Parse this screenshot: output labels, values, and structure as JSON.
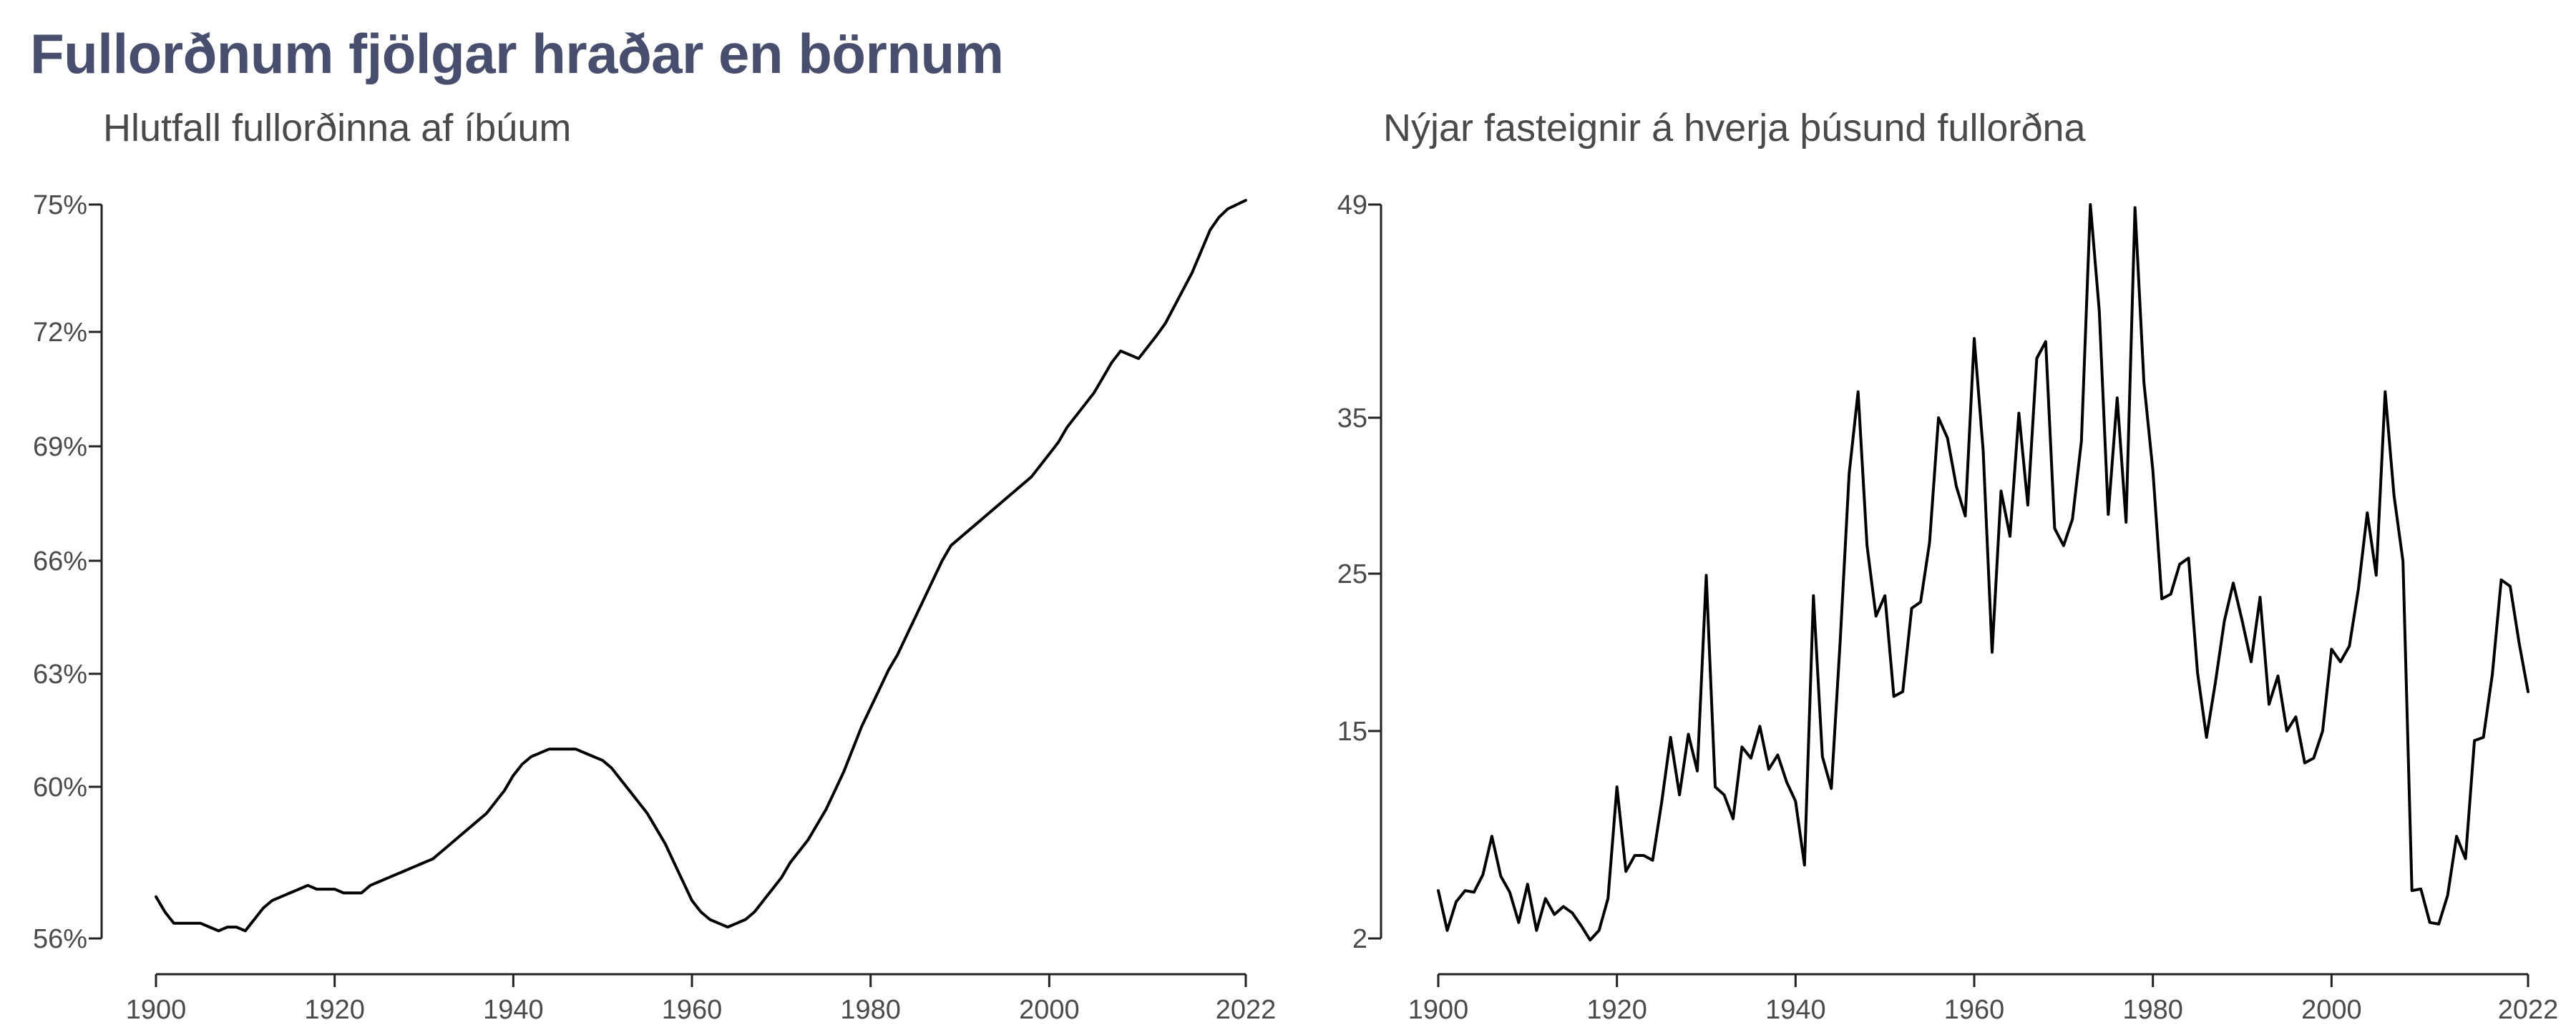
{
  "title": "Fullorðnum fjölgar hraðar en börnum",
  "chart_data": [
    {
      "type": "line",
      "title": "Hlutfall fullorðinna af íbúum",
      "xlabel": "",
      "ylabel": "",
      "xlim": [
        1900,
        2022
      ],
      "ylim": [
        56,
        75
      ],
      "x_ticks": [
        "1900",
        "1920",
        "1940",
        "1960",
        "1980",
        "2000",
        "2022"
      ],
      "y_ticks": [
        "56%",
        "60%",
        "63%",
        "66%",
        "69%",
        "72%",
        "75%"
      ],
      "y_tick_values": [
        56,
        60,
        63,
        66,
        69,
        72,
        75
      ],
      "grid": false,
      "color": "#000000",
      "series": [
        {
          "x": [
            1900,
            1901,
            1902,
            1903,
            1904,
            1905,
            1906,
            1907,
            1908,
            1909,
            1910,
            1911,
            1912,
            1913,
            1914,
            1915,
            1916,
            1917,
            1918,
            1919,
            1920,
            1921,
            1922,
            1923,
            1924,
            1925,
            1926,
            1927,
            1928,
            1929,
            1930,
            1931,
            1932,
            1933,
            1934,
            1935,
            1936,
            1937,
            1938,
            1939,
            1940,
            1941,
            1942,
            1943,
            1944,
            1945,
            1946,
            1947,
            1948,
            1949,
            1950,
            1951,
            1952,
            1953,
            1954,
            1955,
            1956,
            1957,
            1958,
            1959,
            1960,
            1961,
            1962,
            1963,
            1964,
            1965,
            1966,
            1967,
            1968,
            1969,
            1970,
            1971,
            1972,
            1973,
            1974,
            1975,
            1976,
            1977,
            1978,
            1979,
            1980,
            1981,
            1982,
            1983,
            1984,
            1985,
            1986,
            1987,
            1988,
            1989,
            1990,
            1991,
            1992,
            1993,
            1994,
            1995,
            1996,
            1997,
            1998,
            1999,
            2000,
            2001,
            2002,
            2003,
            2004,
            2005,
            2006,
            2007,
            2008,
            2009,
            2010,
            2011,
            2012,
            2013,
            2014,
            2015,
            2016,
            2017,
            2018,
            2019,
            2020,
            2021,
            2022
          ],
          "y": [
            57.1,
            56.7,
            56.4,
            56.4,
            56.4,
            56.4,
            56.3,
            56.2,
            56.3,
            56.3,
            56.2,
            56.5,
            56.8,
            57.0,
            57.1,
            57.2,
            57.3,
            57.4,
            57.3,
            57.3,
            57.3,
            57.2,
            57.2,
            57.2,
            57.4,
            57.5,
            57.6,
            57.7,
            57.8,
            57.9,
            58.0,
            58.1,
            58.3,
            58.5,
            58.7,
            58.9,
            59.1,
            59.3,
            59.6,
            59.9,
            60.3,
            60.6,
            60.8,
            60.9,
            61.0,
            61.0,
            61.0,
            61.0,
            60.9,
            60.8,
            60.7,
            60.5,
            60.2,
            59.9,
            59.6,
            59.3,
            58.9,
            58.5,
            58.0,
            57.5,
            57.0,
            56.7,
            56.5,
            56.4,
            56.3,
            56.4,
            56.5,
            56.7,
            57.0,
            57.3,
            57.6,
            58.0,
            58.3,
            58.6,
            59.0,
            59.4,
            59.9,
            60.4,
            61.0,
            61.6,
            62.1,
            62.6,
            63.1,
            63.5,
            64.0,
            64.5,
            65.0,
            65.5,
            66.0,
            66.4,
            66.6,
            66.8,
            67.0,
            67.2,
            67.4,
            67.6,
            67.8,
            68.0,
            68.2,
            68.5,
            68.8,
            69.1,
            69.5,
            69.8,
            70.1,
            70.4,
            70.8,
            71.2,
            71.5,
            71.4,
            71.3,
            71.6,
            71.9,
            72.2,
            72.6,
            73.0,
            73.4,
            73.9,
            74.4,
            74.7,
            74.9,
            75.0,
            75.1
          ]
        }
      ]
    },
    {
      "type": "line",
      "title": "Nýjar fasteignir á hverja þúsund fullorðna",
      "xlabel": "",
      "ylabel": "",
      "xlim": [
        1900,
        2022
      ],
      "ylim": [
        2,
        49
      ],
      "x_ticks": [
        "1900",
        "1920",
        "1940",
        "1960",
        "1980",
        "2000",
        "2022"
      ],
      "y_ticks": [
        "2",
        "15",
        "25",
        "35",
        "49"
      ],
      "y_tick_values": [
        2,
        15,
        25,
        35,
        49
      ],
      "y_scale": "nonlinear (ticks at 2, 15, 25, 35, 49)",
      "grid": false,
      "color": "#000000",
      "series": [
        {
          "x": [
            1900,
            1901,
            1902,
            1903,
            1904,
            1905,
            1906,
            1907,
            1908,
            1909,
            1910,
            1911,
            1912,
            1913,
            1914,
            1915,
            1916,
            1917,
            1918,
            1919,
            1920,
            1921,
            1922,
            1923,
            1924,
            1925,
            1926,
            1927,
            1928,
            1929,
            1930,
            1931,
            1932,
            1933,
            1934,
            1935,
            1936,
            1937,
            1938,
            1939,
            1940,
            1941,
            1942,
            1943,
            1944,
            1945,
            1946,
            1947,
            1948,
            1949,
            1950,
            1951,
            1952,
            1953,
            1954,
            1955,
            1956,
            1957,
            1958,
            1959,
            1960,
            1961,
            1962,
            1963,
            1964,
            1965,
            1966,
            1967,
            1968,
            1969,
            1970,
            1971,
            1972,
            1973,
            1974,
            1975,
            1976,
            1977,
            1978,
            1979,
            1980,
            1981,
            1982,
            1983,
            1984,
            1985,
            1986,
            1987,
            1988,
            1989,
            1990,
            1991,
            1992,
            1993,
            1994,
            1995,
            1996,
            1997,
            1998,
            1999,
            2000,
            2001,
            2002,
            2003,
            2004,
            2005,
            2006,
            2007,
            2008,
            2009,
            2010,
            2011,
            2012,
            2013,
            2014,
            2015,
            2016,
            2017,
            2018,
            2019,
            2020,
            2021,
            2022
          ],
          "y": [
            5.0,
            2.5,
            4.3,
            5.0,
            4.9,
            6.0,
            8.4,
            5.9,
            4.9,
            3.0,
            5.4,
            2.5,
            4.5,
            3.5,
            4.0,
            3.6,
            2.8,
            1.9,
            2.5,
            4.5,
            11.5,
            6.2,
            7.2,
            7.2,
            6.9,
            10.5,
            14.6,
            11.0,
            14.8,
            12.5,
            24.9,
            11.5,
            11.0,
            9.5,
            14.0,
            13.3,
            15.3,
            12.6,
            13.5,
            11.8,
            10.6,
            6.6,
            23.6,
            13.4,
            11.4,
            20.8,
            31.4,
            36.7,
            26.8,
            22.3,
            23.6,
            17.2,
            17.5,
            22.8,
            23.2,
            27.0,
            35.0,
            33.7,
            30.6,
            28.7,
            40.2,
            32.9,
            20.0,
            30.3,
            27.4,
            35.3,
            29.4,
            38.9,
            40.0,
            27.9,
            26.8,
            28.5,
            33.5,
            49.0,
            42.0,
            28.8,
            36.3,
            28.3,
            48.8,
            37.3,
            31.6,
            23.4,
            23.7,
            25.6,
            26.0,
            18.7,
            14.6,
            18.1,
            22.0,
            24.4,
            22.0,
            19.4,
            23.5,
            16.7,
            18.5,
            15.0,
            15.9,
            13.0,
            13.3,
            15.0,
            20.2,
            19.4,
            20.4,
            24.0,
            28.9,
            24.9,
            36.7,
            30.0,
            25.8,
            5.0,
            5.1,
            3.0,
            2.9,
            4.7,
            8.4,
            7.0,
            14.4,
            14.6,
            18.6,
            24.6,
            24.2,
            20.6,
            17.5
          ]
        }
      ]
    }
  ]
}
